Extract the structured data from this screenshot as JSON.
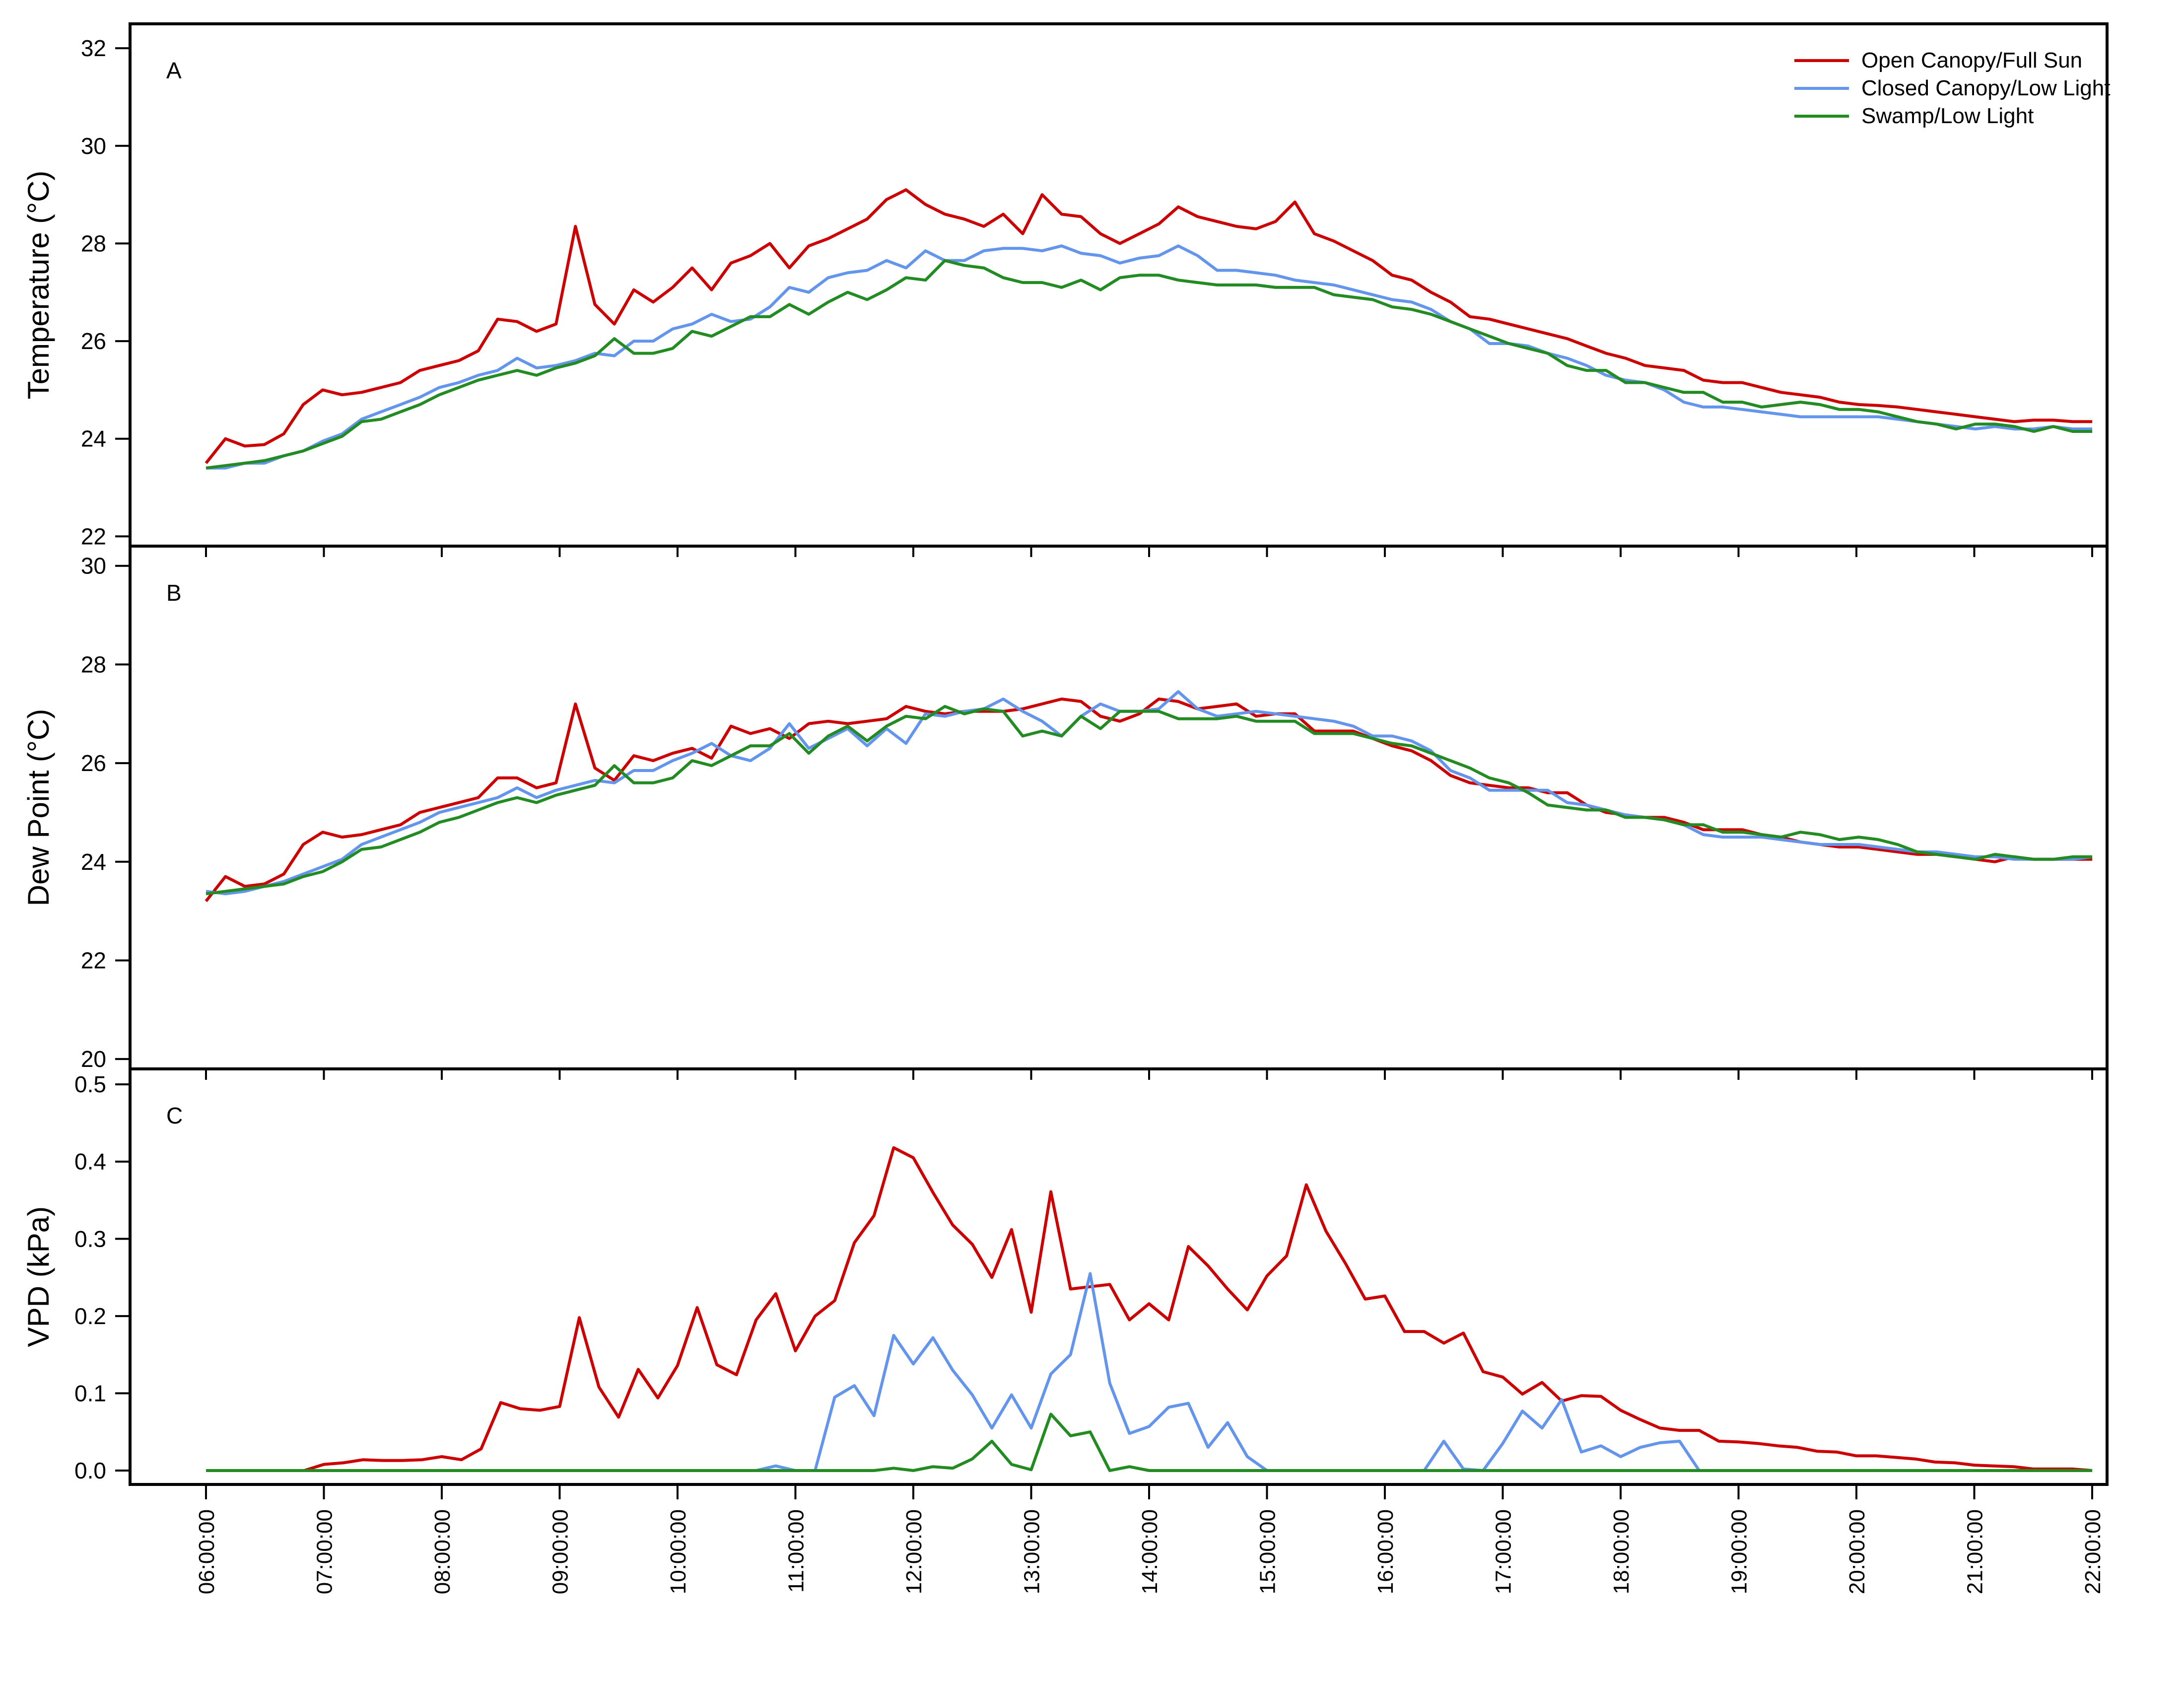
{
  "colors": {
    "open": "#cc0000",
    "closed": "#6495ed",
    "swamp": "#228b22",
    "axis": "#000000"
  },
  "legend": {
    "position": "top-right",
    "entries": [
      "Open Canopy/Full Sun",
      "Closed Canopy/Low Light",
      "Swamp/Low Light"
    ]
  },
  "chart_data": [
    {
      "type": "line",
      "panel_label": "A",
      "ylabel": "Temperature  (°C)",
      "ylim": [
        21.8,
        32.5
      ],
      "yticks": [
        "22",
        "24",
        "26",
        "28",
        "30",
        "32"
      ],
      "xticks": [
        "06:00:00",
        "07:00:00",
        "08:00:00",
        "09:00:00",
        "10:00:00",
        "11:00:00",
        "12:00:00",
        "13:00:00",
        "14:00:00",
        "15:00:00",
        "16:00:00",
        "17:00:00",
        "18:00:00",
        "19:00:00",
        "20:00:00",
        "21:00:00",
        "22:00:00"
      ],
      "x_interval_minutes": 10,
      "series": [
        {
          "name": "Open Canopy/Full Sun",
          "values": [
            23.5,
            24.0,
            23.85,
            23.88,
            24.1,
            24.7,
            25.0,
            24.9,
            24.95,
            25.05,
            25.15,
            25.4,
            25.5,
            25.6,
            25.8,
            26.45,
            26.4,
            26.2,
            26.35,
            28.35,
            26.75,
            26.35,
            27.05,
            26.8,
            27.1,
            27.5,
            27.05,
            27.6,
            27.75,
            28.0,
            27.5,
            27.95,
            28.1,
            28.3,
            28.5,
            28.9,
            29.1,
            28.8,
            28.6,
            28.5,
            28.35,
            28.6,
            28.2,
            29.0,
            28.6,
            28.55,
            28.2,
            28.0,
            28.2,
            28.4,
            28.75,
            28.55,
            28.45,
            28.35,
            28.3,
            28.45,
            28.85,
            28.2,
            28.05,
            27.85,
            27.65,
            27.35,
            27.25,
            27.0,
            26.8,
            26.5,
            26.45,
            26.35,
            26.25,
            26.15,
            26.05,
            25.9,
            25.75,
            25.65,
            25.5,
            25.45,
            25.4,
            25.2,
            25.15,
            25.15,
            25.05,
            24.95,
            24.9,
            24.85,
            24.75,
            24.7,
            24.68,
            24.65,
            24.6,
            24.55,
            24.5,
            24.45,
            24.4,
            24.35,
            24.38,
            24.38,
            24.35,
            24.35
          ]
        },
        {
          "name": "Closed Canopy/Low Light",
          "values": [
            23.4,
            23.4,
            23.5,
            23.5,
            23.65,
            23.75,
            23.95,
            24.1,
            24.4,
            24.55,
            24.7,
            24.85,
            25.05,
            25.15,
            25.3,
            25.4,
            25.65,
            25.45,
            25.5,
            25.6,
            25.75,
            25.7,
            26.0,
            26.0,
            26.25,
            26.35,
            26.55,
            26.4,
            26.45,
            26.7,
            27.1,
            27.0,
            27.3,
            27.4,
            27.45,
            27.65,
            27.5,
            27.85,
            27.65,
            27.65,
            27.85,
            27.9,
            27.9,
            27.85,
            27.95,
            27.8,
            27.75,
            27.6,
            27.7,
            27.75,
            27.95,
            27.75,
            27.45,
            27.45,
            27.4,
            27.35,
            27.25,
            27.2,
            27.15,
            27.05,
            26.95,
            26.85,
            26.8,
            26.65,
            26.4,
            26.25,
            25.95,
            25.95,
            25.9,
            25.75,
            25.65,
            25.5,
            25.3,
            25.2,
            25.15,
            25.0,
            24.75,
            24.65,
            24.65,
            24.6,
            24.55,
            24.5,
            24.45,
            24.45,
            24.45,
            24.45,
            24.45,
            24.4,
            24.35,
            24.3,
            24.25,
            24.2,
            24.25,
            24.2,
            24.2,
            24.25,
            24.2,
            24.2
          ]
        },
        {
          "name": "Swamp/Low Light",
          "values": [
            23.4,
            23.45,
            23.5,
            23.55,
            23.65,
            23.75,
            23.9,
            24.05,
            24.35,
            24.4,
            24.55,
            24.7,
            24.9,
            25.05,
            25.2,
            25.3,
            25.4,
            25.3,
            25.45,
            25.55,
            25.7,
            26.05,
            25.75,
            25.75,
            25.85,
            26.2,
            26.1,
            26.3,
            26.5,
            26.5,
            26.75,
            26.55,
            26.8,
            27.0,
            26.85,
            27.05,
            27.3,
            27.25,
            27.65,
            27.55,
            27.5,
            27.3,
            27.2,
            27.2,
            27.1,
            27.25,
            27.05,
            27.3,
            27.35,
            27.35,
            27.25,
            27.2,
            27.15,
            27.15,
            27.15,
            27.1,
            27.1,
            27.1,
            26.95,
            26.9,
            26.85,
            26.7,
            26.65,
            26.55,
            26.4,
            26.25,
            26.1,
            25.95,
            25.85,
            25.75,
            25.5,
            25.4,
            25.4,
            25.15,
            25.15,
            25.05,
            24.95,
            24.95,
            24.75,
            24.75,
            24.65,
            24.7,
            24.75,
            24.7,
            24.6,
            24.6,
            24.55,
            24.45,
            24.35,
            24.3,
            24.2,
            24.3,
            24.3,
            24.25,
            24.15,
            24.25,
            24.15,
            24.15
          ]
        }
      ]
    },
    {
      "type": "line",
      "panel_label": "B",
      "ylabel": "Dew Point  (°C)",
      "ylim": [
        19.8,
        30.4
      ],
      "yticks": [
        "20",
        "22",
        "24",
        "26",
        "28",
        "30"
      ],
      "xticks": [
        "06:00:00",
        "07:00:00",
        "08:00:00",
        "09:00:00",
        "10:00:00",
        "11:00:00",
        "12:00:00",
        "13:00:00",
        "14:00:00",
        "15:00:00",
        "16:00:00",
        "17:00:00",
        "18:00:00",
        "19:00:00",
        "20:00:00",
        "21:00:00",
        "22:00:00"
      ],
      "x_interval_minutes": 10,
      "series": [
        {
          "name": "Open Canopy/Full Sun",
          "values": [
            23.2,
            23.7,
            23.5,
            23.55,
            23.75,
            24.35,
            24.6,
            24.5,
            24.55,
            24.65,
            24.75,
            25.0,
            25.1,
            25.2,
            25.3,
            25.7,
            25.7,
            25.5,
            25.6,
            27.2,
            25.9,
            25.65,
            26.15,
            26.05,
            26.2,
            26.3,
            26.1,
            26.75,
            26.6,
            26.7,
            26.5,
            26.8,
            26.85,
            26.8,
            26.85,
            26.9,
            27.15,
            27.05,
            27.0,
            27.05,
            27.05,
            27.05,
            27.1,
            27.2,
            27.3,
            27.25,
            26.95,
            26.85,
            27.0,
            27.3,
            27.25,
            27.1,
            27.15,
            27.2,
            26.95,
            27.0,
            27.0,
            26.65,
            26.65,
            26.65,
            26.5,
            26.35,
            26.25,
            26.05,
            25.75,
            25.6,
            25.55,
            25.5,
            25.5,
            25.4,
            25.4,
            25.15,
            25.0,
            24.95,
            24.9,
            24.9,
            24.8,
            24.65,
            24.65,
            24.65,
            24.55,
            24.5,
            24.4,
            24.35,
            24.3,
            24.3,
            24.25,
            24.2,
            24.15,
            24.15,
            24.1,
            24.05,
            24.0,
            24.1,
            24.05,
            24.05,
            24.05,
            24.05
          ]
        },
        {
          "name": "Closed Canopy/Low Light",
          "values": [
            23.4,
            23.35,
            23.4,
            23.5,
            23.6,
            23.75,
            23.9,
            24.05,
            24.35,
            24.5,
            24.65,
            24.8,
            25.0,
            25.1,
            25.2,
            25.3,
            25.5,
            25.3,
            25.45,
            25.55,
            25.65,
            25.6,
            25.85,
            25.85,
            26.05,
            26.2,
            26.4,
            26.15,
            26.05,
            26.3,
            26.8,
            26.3,
            26.5,
            26.7,
            26.35,
            26.7,
            26.4,
            27.0,
            26.95,
            27.05,
            27.1,
            27.3,
            27.05,
            26.85,
            26.55,
            26.95,
            27.2,
            27.05,
            27.05,
            27.1,
            27.45,
            27.1,
            26.95,
            27.0,
            27.05,
            27.0,
            26.95,
            26.9,
            26.85,
            26.75,
            26.55,
            26.55,
            26.45,
            26.25,
            25.85,
            25.7,
            25.45,
            25.45,
            25.45,
            25.45,
            25.2,
            25.15,
            25.05,
            24.95,
            24.9,
            24.85,
            24.75,
            24.55,
            24.5,
            24.5,
            24.5,
            24.45,
            24.4,
            24.35,
            24.35,
            24.35,
            24.3,
            24.25,
            24.2,
            24.2,
            24.15,
            24.1,
            24.1,
            24.05,
            24.05,
            24.05,
            24.05,
            24.1
          ]
        },
        {
          "name": "Swamp/Low Light",
          "values": [
            23.35,
            23.4,
            23.45,
            23.5,
            23.55,
            23.7,
            23.8,
            24.0,
            24.25,
            24.3,
            24.45,
            24.6,
            24.8,
            24.9,
            25.05,
            25.2,
            25.3,
            25.2,
            25.35,
            25.45,
            25.55,
            25.95,
            25.6,
            25.6,
            25.7,
            26.05,
            25.95,
            26.15,
            26.35,
            26.35,
            26.6,
            26.2,
            26.55,
            26.75,
            26.45,
            26.75,
            26.95,
            26.9,
            27.15,
            27.0,
            27.1,
            27.05,
            26.55,
            26.65,
            26.55,
            26.95,
            26.7,
            27.05,
            27.05,
            27.05,
            26.9,
            26.9,
            26.9,
            26.95,
            26.85,
            26.85,
            26.85,
            26.6,
            26.6,
            26.6,
            26.5,
            26.4,
            26.35,
            26.2,
            26.05,
            25.9,
            25.7,
            25.6,
            25.4,
            25.15,
            25.1,
            25.05,
            25.05,
            24.9,
            24.9,
            24.85,
            24.75,
            24.75,
            24.6,
            24.6,
            24.55,
            24.5,
            24.6,
            24.55,
            24.45,
            24.5,
            24.45,
            24.35,
            24.2,
            24.15,
            24.1,
            24.05,
            24.15,
            24.1,
            24.05,
            24.05,
            24.1,
            24.1
          ]
        }
      ]
    },
    {
      "type": "line",
      "panel_label": "C",
      "ylabel": "VPD  (kPa)",
      "ylim": [
        -0.018,
        0.52
      ],
      "yticks": [
        "0.0",
        "0.1",
        "0.2",
        "0.3",
        "0.4",
        "0.5"
      ],
      "xticks": [
        "06:00:00",
        "07:00:00",
        "08:00:00",
        "09:00:00",
        "10:00:00",
        "11:00:00",
        "12:00:00",
        "13:00:00",
        "14:00:00",
        "15:00:00",
        "16:00:00",
        "17:00:00",
        "18:00:00",
        "19:00:00",
        "20:00:00",
        "21:00:00",
        "22:00:00"
      ],
      "x_interval_minutes": 10,
      "series": [
        {
          "name": "Open Canopy/Full Sun",
          "values": [
            0,
            0,
            0,
            0,
            0,
            0,
            0.008,
            0.01,
            0.014,
            0.013,
            0.013,
            0.014,
            0.018,
            0.014,
            0.028,
            0.088,
            0.08,
            0.078,
            0.083,
            0.198,
            0.108,
            0.069,
            0.131,
            0.094,
            0.136,
            0.211,
            0.137,
            0.124,
            0.195,
            0.229,
            0.155,
            0.2,
            0.22,
            0.295,
            0.33,
            0.418,
            0.405,
            0.36,
            0.318,
            0.293,
            0.25,
            0.312,
            0.205,
            0.361,
            0.235,
            0.238,
            0.241,
            0.195,
            0.216,
            0.195,
            0.29,
            0.265,
            0.235,
            0.208,
            0.252,
            0.278,
            0.37,
            0.31,
            0.268,
            0.222,
            0.226,
            0.18,
            0.18,
            0.165,
            0.178,
            0.128,
            0.121,
            0.099,
            0.114,
            0.09,
            0.097,
            0.096,
            0.078,
            0.066,
            0.055,
            0.052,
            0.052,
            0.038,
            0.037,
            0.035,
            0.032,
            0.03,
            0.025,
            0.024,
            0.019,
            0.019,
            0.017,
            0.015,
            0.011,
            0.01,
            0.007,
            0.006,
            0.005,
            0.002,
            0.002,
            0.002,
            0
          ]
        },
        {
          "name": "Closed Canopy/Low Light",
          "values": [
            0,
            0,
            0,
            0,
            0,
            0,
            0,
            0,
            0,
            0,
            0,
            0,
            0,
            0,
            0,
            0,
            0,
            0,
            0,
            0,
            0,
            0,
            0,
            0,
            0,
            0,
            0,
            0,
            0,
            0.006,
            0,
            0,
            0.095,
            0.11,
            0.071,
            0.175,
            0.138,
            0.172,
            0.13,
            0.098,
            0.055,
            0.098,
            0.055,
            0.125,
            0.15,
            0.255,
            0.113,
            0.048,
            0.057,
            0.082,
            0.087,
            0.03,
            0.062,
            0.018,
            0,
            0,
            0,
            0,
            0,
            0,
            0,
            0,
            0,
            0.038,
            0.002,
            0,
            0.035,
            0.077,
            0.055,
            0.092,
            0.024,
            0.032,
            0.018,
            0.03,
            0.036,
            0.038,
            0,
            0,
            0,
            0,
            0,
            0,
            0,
            0,
            0,
            0,
            0,
            0,
            0,
            0,
            0,
            0,
            0,
            0,
            0,
            0,
            0
          ]
        },
        {
          "name": "Swamp/Low Light",
          "values": [
            0,
            0,
            0,
            0,
            0,
            0,
            0,
            0,
            0,
            0,
            0,
            0,
            0,
            0,
            0,
            0,
            0,
            0,
            0,
            0,
            0,
            0,
            0,
            0,
            0,
            0,
            0,
            0,
            0,
            0,
            0,
            0,
            0,
            0,
            0,
            0.003,
            0,
            0.005,
            0.003,
            0.015,
            0.038,
            0.008,
            0.001,
            0.073,
            0.045,
            0.05,
            0,
            0.005,
            0,
            0,
            0,
            0,
            0,
            0,
            0,
            0,
            0,
            0,
            0,
            0,
            0,
            0,
            0,
            0,
            0,
            0,
            0,
            0,
            0,
            0,
            0,
            0,
            0,
            0,
            0,
            0,
            0,
            0,
            0,
            0,
            0,
            0,
            0,
            0,
            0,
            0,
            0,
            0,
            0,
            0,
            0,
            0,
            0,
            0,
            0,
            0,
            0
          ]
        }
      ]
    }
  ]
}
